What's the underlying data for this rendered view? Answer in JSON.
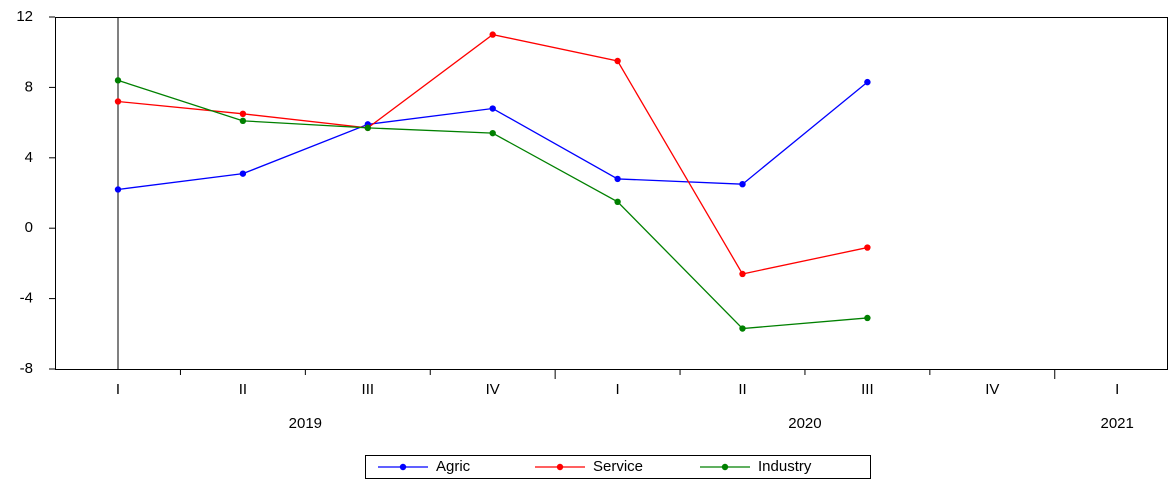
{
  "chart_data": {
    "type": "line",
    "categories": [
      "I",
      "II",
      "III",
      "IV",
      "I",
      "II",
      "III",
      "IV",
      "I"
    ],
    "year_labels": [
      "2019",
      "2020",
      "2021"
    ],
    "series": [
      {
        "name": "Agric",
        "color": "#0000ff",
        "values": [
          2.2,
          3.1,
          5.9,
          6.8,
          2.8,
          2.5,
          8.3,
          null,
          null
        ]
      },
      {
        "name": "Service",
        "color": "#ff0000",
        "values": [
          7.2,
          6.5,
          5.7,
          11.0,
          9.5,
          -2.6,
          -1.1,
          null,
          null
        ]
      },
      {
        "name": "Industry",
        "color": "#008000",
        "values": [
          8.4,
          6.1,
          5.7,
          5.4,
          1.5,
          -5.7,
          -5.1,
          null,
          null
        ]
      }
    ],
    "ylim": [
      -8,
      12
    ],
    "yticks": [
      -8,
      -4,
      0,
      4,
      8,
      12
    ],
    "grid": false,
    "legend": "bottom"
  }
}
